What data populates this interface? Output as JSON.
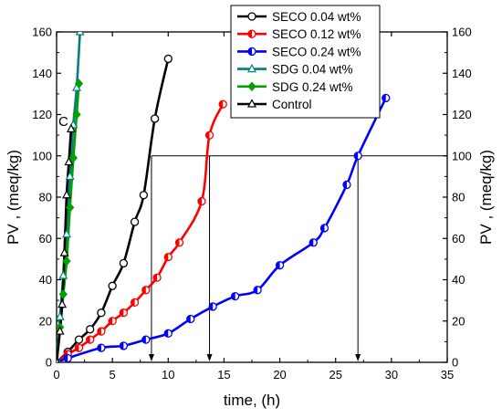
{
  "chart_data": {
    "type": "line",
    "xlabel": "time, (h)",
    "ylabel_left": "PV , (meq/kg)",
    "ylabel_right": "PV , (meq/kg)",
    "xlim": [
      0,
      35
    ],
    "ylim": [
      0,
      160
    ],
    "xticks": [
      "0",
      "5",
      "10",
      "15",
      "20",
      "25",
      "30",
      "35"
    ],
    "yticks": [
      "0",
      "20",
      "40",
      "60",
      "80",
      "100",
      "120",
      "140",
      "160"
    ],
    "legend_position": "top-center",
    "annotation": "C",
    "reference_line": {
      "y": 100,
      "drops_at_x": [
        8.5,
        13.7,
        27
      ]
    },
    "series": [
      {
        "name": "SECO 0.04 wt%",
        "color": "#000000",
        "marker": "circle-open",
        "x": [
          0,
          1,
          2,
          3,
          4,
          5,
          6,
          7,
          7.8,
          8.8,
          10
        ],
        "y": [
          0,
          5,
          11,
          16,
          24,
          37,
          48,
          68,
          81,
          118,
          147
        ]
      },
      {
        "name": "SECO 0.12 wt%",
        "color": "#ff0000",
        "marker": "circle-half",
        "x": [
          0,
          1,
          2,
          3,
          4,
          5,
          6,
          7,
          8,
          9,
          10,
          11,
          13,
          13.7,
          14.9
        ],
        "y": [
          0,
          4,
          7,
          11,
          15,
          20,
          24,
          29,
          35,
          41,
          51,
          58,
          78,
          110,
          125
        ]
      },
      {
        "name": "SECO 0.24 wt%",
        "color": "#0000ff",
        "marker": "circle-half",
        "x": [
          0,
          1,
          4,
          6,
          8,
          10,
          12,
          14,
          16,
          18,
          20,
          23,
          24,
          26,
          27,
          29.5
        ],
        "y": [
          0,
          2,
          7,
          8,
          11,
          14,
          21,
          27,
          32,
          35,
          47,
          58,
          65,
          86,
          100,
          128
        ]
      },
      {
        "name": "SDG 0.04 wt%",
        "color": "#008080",
        "marker": "triangle-open",
        "x": [
          0,
          0.3,
          0.6,
          0.9,
          1.2,
          1.5,
          1.8,
          2.1
        ],
        "y": [
          0,
          22,
          42,
          62,
          90,
          115,
          133,
          160
        ]
      },
      {
        "name": "SDG 0.24 wt%",
        "color": "#00a000",
        "marker": "diamond-filled",
        "x": [
          0,
          0.3,
          0.6,
          0.9,
          1.2,
          1.5,
          1.8,
          2.0
        ],
        "y": [
          0,
          17,
          33,
          49,
          75,
          99,
          120,
          135
        ]
      },
      {
        "name": "Control",
        "color": "#000000",
        "marker": "triangle-open",
        "x": [
          0,
          0.3,
          0.5,
          0.7,
          0.9,
          1.1,
          1.3
        ],
        "y": [
          0,
          15,
          28,
          53,
          81,
          97,
          113
        ]
      }
    ]
  }
}
